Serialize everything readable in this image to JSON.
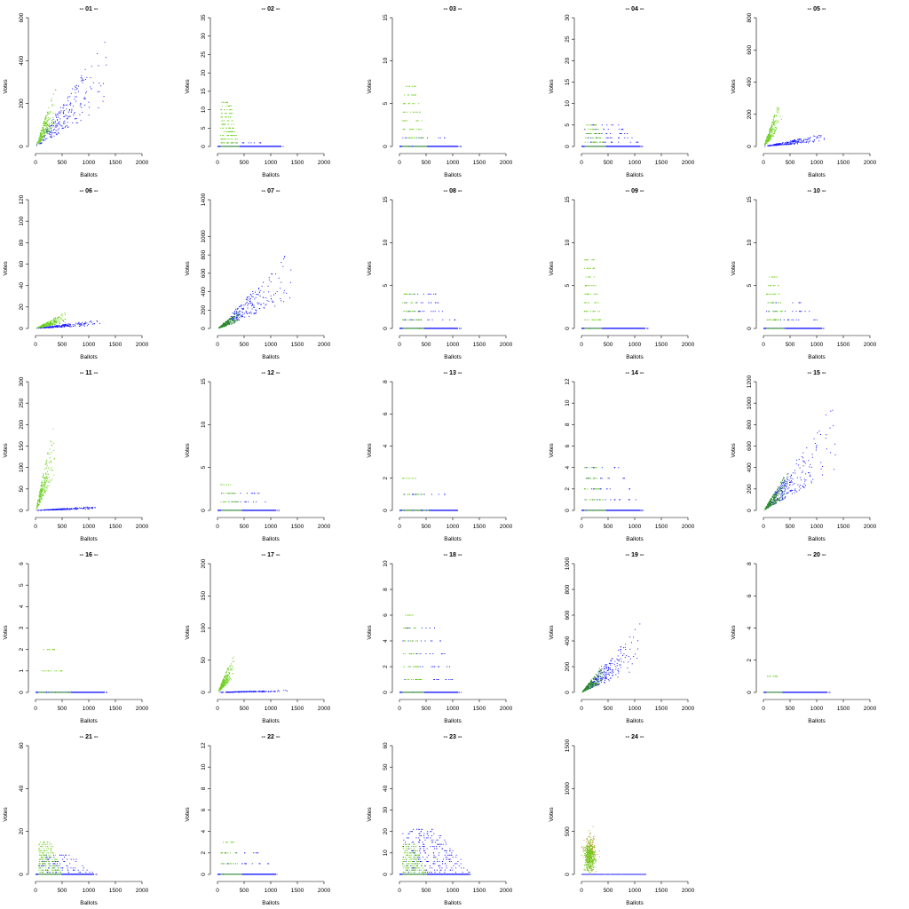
{
  "colors": {
    "series_a": "#1a1aff",
    "series_b": "#6ccf1c",
    "series_b_alt": "#9acd32",
    "series_c": "#b8a030"
  },
  "chart_data": [
    {
      "type": "scatter",
      "title": "-- 01 --",
      "xlabel": "Ballots",
      "ylabel": "Votes",
      "xlim": [
        0,
        2000
      ],
      "ylim": [
        0,
        600
      ],
      "xticks": [
        0,
        500,
        1000,
        1500,
        2000
      ],
      "yticks": [
        0,
        200,
        400,
        600
      ],
      "pattern": "both_spread",
      "series": [
        {
          "color": "#1a1aff",
          "slope": 0.28,
          "xmax": 1400
        },
        {
          "color": "#6ccf1c",
          "slope": 0.55,
          "xmax": 380
        }
      ]
    },
    {
      "type": "scatter",
      "title": "-- 02 --",
      "xlabel": "Ballots",
      "ylabel": "Votes",
      "xlim": [
        0,
        2000
      ],
      "ylim": [
        0,
        35
      ],
      "xticks": [
        0,
        500,
        1000,
        1500,
        2000
      ],
      "yticks": [
        0,
        5,
        10,
        15,
        20,
        25,
        30,
        35
      ],
      "pattern": "strata",
      "series": [
        {
          "color": "#1a1aff",
          "levels": 2,
          "xmax": 1200
        },
        {
          "color": "#6ccf1c",
          "levels": 13,
          "xmax": 350
        }
      ]
    },
    {
      "type": "scatter",
      "title": "-- 03 --",
      "xlabel": "Ballots",
      "ylabel": "Votes",
      "xlim": [
        0,
        2000
      ],
      "ylim": [
        0,
        15
      ],
      "xticks": [
        0,
        500,
        1000,
        1500,
        2000
      ],
      "yticks": [
        0,
        5,
        10,
        15
      ],
      "pattern": "strata",
      "series": [
        {
          "color": "#1a1aff",
          "levels": 2,
          "xmax": 1100
        },
        {
          "color": "#6ccf1c",
          "levels": 8,
          "xmax": 450
        }
      ]
    },
    {
      "type": "scatter",
      "title": "-- 04 --",
      "xlabel": "Ballots",
      "ylabel": "Votes",
      "xlim": [
        0,
        2000
      ],
      "ylim": [
        0,
        30
      ],
      "xticks": [
        0,
        500,
        1000,
        1500,
        2000
      ],
      "yticks": [
        0,
        5,
        10,
        15,
        20,
        25,
        30
      ],
      "pattern": "strata",
      "series": [
        {
          "color": "#1a1aff",
          "levels": 6,
          "xmax": 1100
        },
        {
          "color": "#6ccf1c",
          "levels": 6,
          "xmax": 400
        }
      ]
    },
    {
      "type": "scatter",
      "title": "-- 05 --",
      "xlabel": "Ballots",
      "ylabel": "Votes",
      "xlim": [
        0,
        2000
      ],
      "ylim": [
        0,
        800
      ],
      "xticks": [
        0,
        500,
        1000,
        1500,
        2000
      ],
      "yticks": [
        0,
        200,
        400,
        600,
        800
      ],
      "pattern": "low_band",
      "series": [
        {
          "color": "#1a1aff",
          "slope": 0.05,
          "xmax": 1200
        },
        {
          "color": "#6ccf1c",
          "slope": 0.7,
          "xmax": 330
        }
      ]
    },
    {
      "type": "scatter",
      "title": "-- 06 --",
      "xlabel": "Ballots",
      "ylabel": "Votes",
      "xlim": [
        0,
        2000
      ],
      "ylim": [
        0,
        120
      ],
      "xticks": [
        0,
        500,
        1000,
        1500,
        2000
      ],
      "yticks": [
        0,
        20,
        40,
        60,
        80,
        100,
        120
      ],
      "pattern": "low_band",
      "series": [
        {
          "color": "#1a1aff",
          "slope": 0.005,
          "xmax": 1200
        },
        {
          "color": "#6ccf1c",
          "slope": 0.02,
          "xmax": 600
        }
      ]
    },
    {
      "type": "scatter",
      "title": "-- 07 --",
      "xlabel": "Ballots",
      "ylabel": "Votes",
      "xlim": [
        0,
        2000
      ],
      "ylim": [
        0,
        1400
      ],
      "xticks": [
        0,
        500,
        1000,
        1500,
        2000
      ],
      "yticks": [
        0,
        200,
        400,
        600,
        800,
        1000,
        1400
      ],
      "pattern": "both_spread",
      "series": [
        {
          "color": "#1a1aff",
          "slope": 0.45,
          "xmax": 1500
        },
        {
          "color": "#2a8a2a",
          "slope": 0.35,
          "xmax": 450
        }
      ]
    },
    {
      "type": "scatter",
      "title": "-- 08 --",
      "xlabel": "Ballots",
      "ylabel": "Votes",
      "xlim": [
        0,
        2000
      ],
      "ylim": [
        0,
        15
      ],
      "xticks": [
        0,
        500,
        1000,
        1500,
        2000
      ],
      "yticks": [
        0,
        5,
        10,
        15
      ],
      "pattern": "strata",
      "series": [
        {
          "color": "#1a1aff",
          "levels": 5,
          "xmax": 1100
        },
        {
          "color": "#6ccf1c",
          "levels": 5,
          "xmax": 400
        }
      ]
    },
    {
      "type": "scatter",
      "title": "-- 09 --",
      "xlabel": "Ballots",
      "ylabel": "Votes",
      "xlim": [
        0,
        2000
      ],
      "ylim": [
        0,
        15
      ],
      "xticks": [
        0,
        500,
        1000,
        1500,
        2000
      ],
      "yticks": [
        0,
        5,
        10,
        15
      ],
      "pattern": "strata",
      "series": [
        {
          "color": "#1a1aff",
          "levels": 1,
          "xmax": 1200
        },
        {
          "color": "#6ccf1c",
          "levels": 9,
          "xmax": 320
        }
      ]
    },
    {
      "type": "scatter",
      "title": "-- 10 --",
      "xlabel": "Ballots",
      "ylabel": "Votes",
      "xlim": [
        0,
        2000
      ],
      "ylim": [
        0,
        15
      ],
      "xticks": [
        0,
        500,
        1000,
        1500,
        2000
      ],
      "yticks": [
        0,
        5,
        10,
        15
      ],
      "pattern": "strata",
      "series": [
        {
          "color": "#1a1aff",
          "levels": 4,
          "xmax": 1100
        },
        {
          "color": "#6ccf1c",
          "levels": 7,
          "xmax": 350
        }
      ]
    },
    {
      "type": "scatter",
      "title": "-- 11 --",
      "xlabel": "Ballots",
      "ylabel": "Votes",
      "xlim": [
        0,
        2000
      ],
      "ylim": [
        0,
        300
      ],
      "xticks": [
        0,
        500,
        1000,
        1500,
        2000
      ],
      "yticks": [
        0,
        50,
        100,
        150,
        200,
        250,
        300
      ],
      "pattern": "low_band",
      "series": [
        {
          "color": "#1a1aff",
          "slope": 0.006,
          "xmax": 1200
        },
        {
          "color": "#6ccf1c",
          "slope": 0.45,
          "xmax": 350
        }
      ]
    },
    {
      "type": "scatter",
      "title": "-- 12 --",
      "xlabel": "Ballots",
      "ylabel": "Votes",
      "xlim": [
        0,
        2000
      ],
      "ylim": [
        0,
        15
      ],
      "xticks": [
        0,
        500,
        1000,
        1500,
        2000
      ],
      "yticks": [
        0,
        5,
        10,
        15
      ],
      "pattern": "strata",
      "series": [
        {
          "color": "#1a1aff",
          "levels": 3,
          "xmax": 1100
        },
        {
          "color": "#6ccf1c",
          "levels": 4,
          "xmax": 400
        }
      ]
    },
    {
      "type": "scatter",
      "title": "-- 13 --",
      "xlabel": "Ballots",
      "ylabel": "Votes",
      "xlim": [
        0,
        2000
      ],
      "ylim": [
        0,
        8
      ],
      "xticks": [
        0,
        500,
        1000,
        1500,
        2000
      ],
      "yticks": [
        0,
        2,
        4,
        6,
        8
      ],
      "pattern": "strata",
      "series": [
        {
          "color": "#1a1aff",
          "levels": 2,
          "xmax": 1100
        },
        {
          "color": "#6ccf1c",
          "levels": 3,
          "xmax": 500
        }
      ]
    },
    {
      "type": "scatter",
      "title": "-- 14 --",
      "xlabel": "Ballots",
      "ylabel": "Votes",
      "xlim": [
        0,
        2000
      ],
      "ylim": [
        0,
        12
      ],
      "xticks": [
        0,
        500,
        1000,
        1500,
        2000
      ],
      "yticks": [
        0,
        2,
        4,
        6,
        8,
        10,
        12
      ],
      "pattern": "strata",
      "series": [
        {
          "color": "#1a1aff",
          "levels": 5,
          "xmax": 1100
        },
        {
          "color": "#6ccf1c",
          "levels": 5,
          "xmax": 400
        }
      ]
    },
    {
      "type": "scatter",
      "title": "-- 15 --",
      "xlabel": "Ballots",
      "ylabel": "Votes",
      "xlim": [
        0,
        2000
      ],
      "ylim": [
        0,
        1200
      ],
      "xticks": [
        0,
        500,
        1000,
        1500,
        2000
      ],
      "yticks": [
        0,
        200,
        400,
        600,
        800,
        1000,
        1200
      ],
      "pattern": "both_spread",
      "series": [
        {
          "color": "#1a1aff",
          "slope": 0.55,
          "xmax": 1400
        },
        {
          "color": "#2a8a2a",
          "slope": 0.6,
          "xmax": 450
        }
      ]
    },
    {
      "type": "scatter",
      "title": "-- 16 --",
      "xlabel": "Ballots",
      "ylabel": "Votes",
      "xlim": [
        0,
        2000
      ],
      "ylim": [
        0,
        6
      ],
      "xticks": [
        0,
        500,
        1000,
        1500,
        2000
      ],
      "yticks": [
        0,
        1,
        2,
        3,
        4,
        5,
        6
      ],
      "pattern": "strata",
      "series": [
        {
          "color": "#1a1aff",
          "levels": 1,
          "xmax": 1300
        },
        {
          "color": "#6ccf1c",
          "levels": 3,
          "xmax": 600
        }
      ]
    },
    {
      "type": "scatter",
      "title": "-- 17 --",
      "xlabel": "Ballots",
      "ylabel": "Votes",
      "xlim": [
        0,
        2000
      ],
      "ylim": [
        0,
        200
      ],
      "xticks": [
        0,
        500,
        1000,
        1500,
        2000
      ],
      "yticks": [
        0,
        50,
        100,
        150,
        200
      ],
      "pattern": "low_band",
      "series": [
        {
          "color": "#1a1aff",
          "slope": 0.002,
          "xmax": 1300
        },
        {
          "color": "#6ccf1c",
          "slope": 0.15,
          "xmax": 300
        }
      ]
    },
    {
      "type": "scatter",
      "title": "-- 18 --",
      "xlabel": "Ballots",
      "ylabel": "Votes",
      "xlim": [
        0,
        2000
      ],
      "ylim": [
        0,
        10
      ],
      "xticks": [
        0,
        500,
        1000,
        1500,
        2000
      ],
      "yticks": [
        0,
        2,
        4,
        6,
        8,
        10
      ],
      "pattern": "strata",
      "series": [
        {
          "color": "#1a1aff",
          "levels": 6,
          "xmax": 1100
        },
        {
          "color": "#6ccf1c",
          "levels": 7,
          "xmax": 400
        }
      ]
    },
    {
      "type": "scatter",
      "title": "-- 19 --",
      "xlabel": "Ballots",
      "ylabel": "Votes",
      "xlim": [
        0,
        2000
      ],
      "ylim": [
        0,
        1000
      ],
      "xticks": [
        0,
        500,
        1000,
        1500,
        2000
      ],
      "yticks": [
        0,
        200,
        400,
        600,
        800,
        1000
      ],
      "pattern": "both_spread",
      "series": [
        {
          "color": "#1a1aff",
          "slope": 0.35,
          "xmax": 1100
        },
        {
          "color": "#2a8a2a",
          "slope": 0.4,
          "xmax": 400
        }
      ]
    },
    {
      "type": "scatter",
      "title": "-- 20 --",
      "xlabel": "Ballots",
      "ylabel": "Votes",
      "xlim": [
        0,
        2000
      ],
      "ylim": [
        0,
        8
      ],
      "xticks": [
        0,
        500,
        1000,
        1500,
        2000
      ],
      "yticks": [
        0,
        2,
        4,
        6,
        8
      ],
      "pattern": "strata",
      "series": [
        {
          "color": "#1a1aff",
          "levels": 1,
          "xmax": 1200
        },
        {
          "color": "#6ccf1c",
          "levels": 2,
          "xmax": 300
        }
      ]
    },
    {
      "type": "scatter",
      "title": "-- 21 --",
      "xlabel": "Ballots",
      "ylabel": "Votes",
      "xlim": [
        0,
        2000
      ],
      "ylim": [
        0,
        60
      ],
      "xticks": [
        0,
        500,
        1000,
        1500,
        2000
      ],
      "yticks": [
        0,
        20,
        40,
        60
      ],
      "pattern": "strata",
      "series": [
        {
          "color": "#1a1aff",
          "levels": 10,
          "xmax": 1100
        },
        {
          "color": "#6ccf1c",
          "levels": 16,
          "xmax": 450
        }
      ]
    },
    {
      "type": "scatter",
      "title": "-- 22 --",
      "xlabel": "Ballots",
      "ylabel": "Votes",
      "xlim": [
        0,
        2000
      ],
      "ylim": [
        0,
        12
      ],
      "xticks": [
        0,
        500,
        1000,
        1500,
        2000
      ],
      "yticks": [
        0,
        2,
        4,
        6,
        8,
        10,
        12
      ],
      "pattern": "strata",
      "series": [
        {
          "color": "#1a1aff",
          "levels": 3,
          "xmax": 1100
        },
        {
          "color": "#6ccf1c",
          "levels": 4,
          "xmax": 400
        }
      ]
    },
    {
      "type": "scatter",
      "title": "-- 23 --",
      "xlabel": "Ballots",
      "ylabel": "Votes",
      "xlim": [
        0,
        2000
      ],
      "ylim": [
        0,
        60
      ],
      "xticks": [
        0,
        500,
        1000,
        1500,
        2000
      ],
      "yticks": [
        0,
        10,
        20,
        30,
        40,
        50,
        60
      ],
      "pattern": "strata",
      "series": [
        {
          "color": "#1a1aff",
          "levels": 22,
          "xmax": 1300
        },
        {
          "color": "#6ccf1c",
          "levels": 15,
          "xmax": 450
        }
      ]
    },
    {
      "type": "scatter",
      "title": "-- 24 --",
      "xlabel": "Ballots",
      "ylabel": "Votes",
      "xlim": [
        0,
        2000
      ],
      "ylim": [
        0,
        1500
      ],
      "xticks": [
        0,
        500,
        1000,
        1500,
        2000
      ],
      "yticks": [
        0,
        500,
        1000,
        1500
      ],
      "pattern": "blob",
      "series": [
        {
          "color": "#1a1aff",
          "slope": 0.0,
          "xmax": 1200
        },
        {
          "color": "#b8a030",
          "slope": 1.2,
          "xmax": 400
        },
        {
          "color": "#6ccf1c",
          "slope": 1.0,
          "xmax": 330
        }
      ]
    }
  ]
}
